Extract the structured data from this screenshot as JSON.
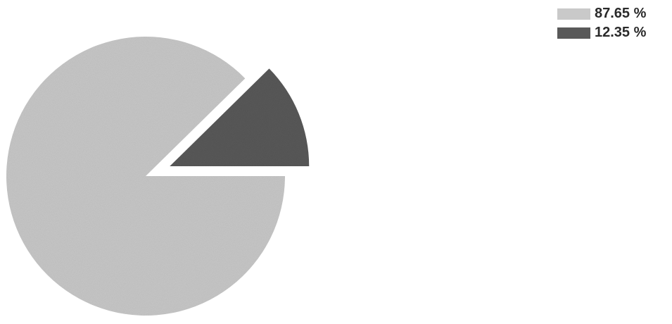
{
  "chart_data": {
    "type": "pie",
    "title": "",
    "slices": [
      {
        "label": "87.65 %",
        "value": 87.65,
        "color": "#c9c9c9",
        "exploded": false
      },
      {
        "label": "12.35 %",
        "value": 12.35,
        "color": "#595959",
        "exploded": true
      }
    ],
    "legend_position": "top-right"
  }
}
